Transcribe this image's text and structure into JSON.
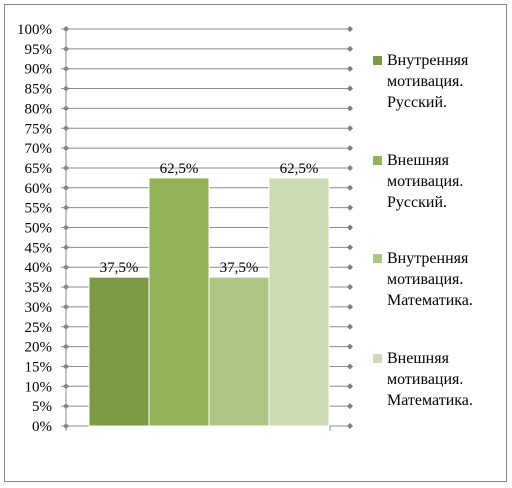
{
  "chart_data": {
    "type": "bar",
    "categories": [
      ""
    ],
    "ylim": [
      0,
      100
    ],
    "y_step": 5,
    "y_tick_format": "percent",
    "grid": true,
    "legend_position": "right",
    "series": [
      {
        "name": "Внутренняя мотивация. Русский.",
        "legend_lines": [
          "Внутренняя",
          "мотивация.",
          "Русский."
        ],
        "value": 37.5,
        "label": "37,5%",
        "color": "#7a9a44"
      },
      {
        "name": "Внешняя мотивация. Русский.",
        "legend_lines": [
          "Внешняя",
          "мотивация.",
          "Русский."
        ],
        "value": 62.5,
        "label": "62,5%",
        "color": "#92b357"
      },
      {
        "name": "Внутренняя мотивация. Математика.",
        "legend_lines": [
          "Внутренняя",
          "мотивация.",
          "Математика."
        ],
        "value": 37.5,
        "label": "37,5%",
        "color": "#adc585"
      },
      {
        "name": "Внешняя мотивация. Математика.",
        "legend_lines": [
          "Внешняя",
          "мотивация.",
          "Математика."
        ],
        "value": 62.5,
        "label": "62,5%",
        "color": "#cddbb5"
      }
    ]
  }
}
